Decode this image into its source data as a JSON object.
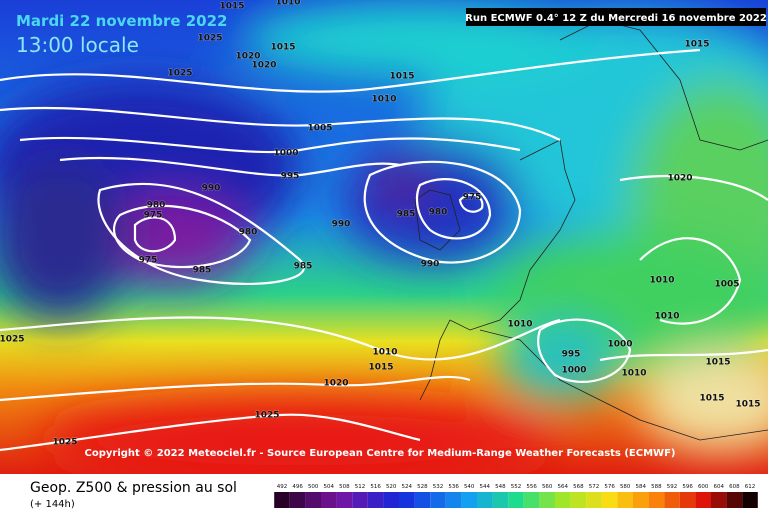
{
  "header": {
    "date": "Mardi 22 novembre 2022",
    "time": "13:00 locale",
    "run": "Run ECMWF 0.4° 12 Z du Mercredi 16 novembre 2022"
  },
  "copyright": "Copyright © 2022 Meteociel.fr - Source European Centre for Medium-Range Weather Forecasts (ECMWF)",
  "legend": {
    "title": "Geop. Z500 & pression au sol",
    "lead": "(+ 144h)",
    "ticks": [
      492,
      496,
      500,
      504,
      508,
      512,
      516,
      520,
      524,
      528,
      532,
      536,
      540,
      544,
      548,
      552,
      556,
      560,
      564,
      568,
      572,
      576,
      580,
      584,
      588,
      592,
      596,
      600,
      604,
      608,
      612
    ]
  },
  "isobar_labels": [
    1015,
    1015,
    1010,
    1005,
    1000,
    995,
    990,
    980,
    975,
    980,
    975,
    985,
    985,
    990,
    985,
    980,
    975,
    990,
    1015,
    1020,
    1010,
    1005,
    1010,
    1010,
    1000,
    995,
    1000,
    1010,
    1015,
    1020,
    1025,
    1025,
    1025,
    1015,
    1010,
    1015,
    1015,
    1025,
    1025,
    1020,
    1020,
    1015,
    1010
  ]
}
